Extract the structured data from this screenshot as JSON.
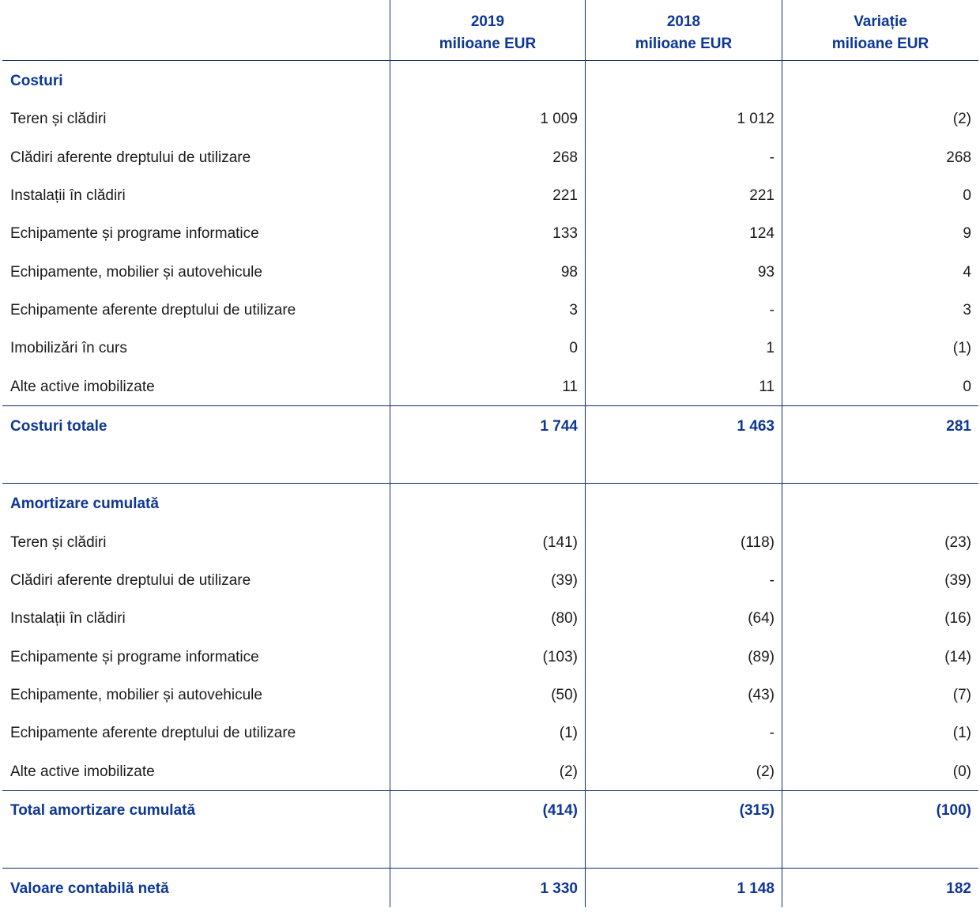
{
  "columns": [
    {
      "year": "2019",
      "unit": "milioane EUR"
    },
    {
      "year": "2018",
      "unit": "milioane EUR"
    },
    {
      "year": "Variație",
      "unit": "milioane EUR"
    }
  ],
  "costs": {
    "heading": "Costuri",
    "rows": [
      {
        "label": "Teren și clădiri",
        "v2019": "1 009",
        "v2018": "1 012",
        "change": "(2)"
      },
      {
        "label": "Clădiri aferente dreptului de utilizare",
        "v2019": "268",
        "v2018": "-",
        "change": "268"
      },
      {
        "label": "Instalații în clădiri",
        "v2019": "221",
        "v2018": "221",
        "change": "0"
      },
      {
        "label": "Echipamente și programe informatice",
        "v2019": "133",
        "v2018": "124",
        "change": "9"
      },
      {
        "label": "Echipamente, mobilier și autovehicule",
        "v2019": "98",
        "v2018": "93",
        "change": "4"
      },
      {
        "label": "Echipamente aferente dreptului de utilizare",
        "v2019": "3",
        "v2018": "-",
        "change": "3"
      },
      {
        "label": "Imobilizări în curs",
        "v2019": "0",
        "v2018": "1",
        "change": "(1)"
      },
      {
        "label": "Alte active imobilizate",
        "v2019": "11",
        "v2018": "11",
        "change": "0"
      }
    ],
    "total": {
      "label": "Costuri totale",
      "v2019": "1 744",
      "v2018": "1 463",
      "change": "281"
    }
  },
  "depreciation": {
    "heading": "Amortizare cumulată",
    "rows": [
      {
        "label": "Teren și clădiri",
        "v2019": "(141)",
        "v2018": "(118)",
        "change": "(23)"
      },
      {
        "label": "Clădiri aferente dreptului de utilizare",
        "v2019": "(39)",
        "v2018": "-",
        "change": "(39)"
      },
      {
        "label": "Instalații în clădiri",
        "v2019": "(80)",
        "v2018": "(64)",
        "change": "(16)"
      },
      {
        "label": "Echipamente și programe informatice",
        "v2019": "(103)",
        "v2018": "(89)",
        "change": "(14)"
      },
      {
        "label": "Echipamente, mobilier și autovehicule",
        "v2019": "(50)",
        "v2018": "(43)",
        "change": "(7)"
      },
      {
        "label": "Echipamente aferente dreptului de utilizare",
        "v2019": "(1)",
        "v2018": "-",
        "change": "(1)"
      },
      {
        "label": "Alte active imobilizate",
        "v2019": "(2)",
        "v2018": "(2)",
        "change": "(0)"
      }
    ],
    "total": {
      "label": "Total amortizare cumulată",
      "v2019": "(414)",
      "v2018": "(315)",
      "change": "(100)"
    }
  },
  "net": {
    "label": "Valoare contabilă netă",
    "v2019": "1 330",
    "v2018": "1 148",
    "change": "182"
  },
  "colors": {
    "accent": "#0d3795",
    "rule": "#0d2a6e"
  }
}
